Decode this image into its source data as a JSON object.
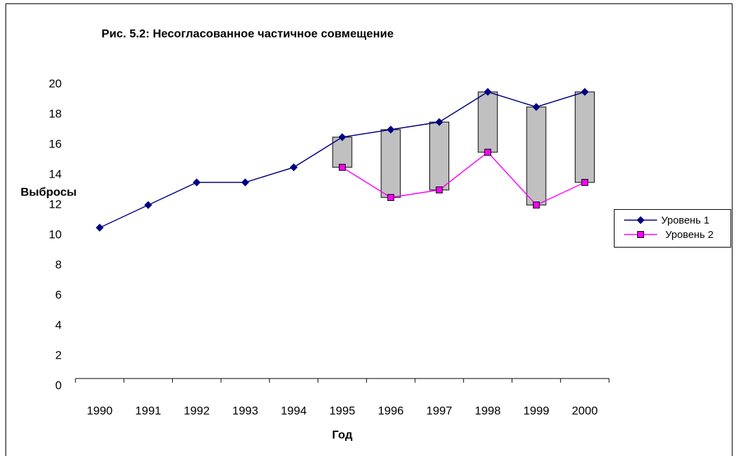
{
  "chart_data": {
    "type": "line",
    "title": "Рис. 5.2: Несогласованное частичное совмещение",
    "x_label": "Год",
    "y_label": "Выбросы",
    "categories": [
      "1990",
      "1991",
      "1992",
      "1993",
      "1994",
      "1995",
      "1996",
      "1997",
      "1998",
      "1999",
      "2000"
    ],
    "series": [
      {
        "name": "Уровень 1",
        "color": "#000080",
        "marker": "diamond",
        "values": [
          10,
          11.5,
          13,
          13,
          14,
          16,
          16.5,
          17,
          19,
          18,
          19
        ]
      },
      {
        "name": "Уровень 2",
        "color": "#ff00ff",
        "marker": "square",
        "values": [
          null,
          null,
          null,
          null,
          null,
          14,
          12,
          12.5,
          15,
          11.5,
          13
        ]
      }
    ],
    "high_low_bars": true,
    "bar_color": "#c0c0c0",
    "ylim": [
      0,
      20
    ],
    "yticks": [
      0,
      2,
      4,
      6,
      8,
      10,
      12,
      14,
      16,
      18,
      20
    ],
    "grid": false,
    "legend": "right"
  }
}
